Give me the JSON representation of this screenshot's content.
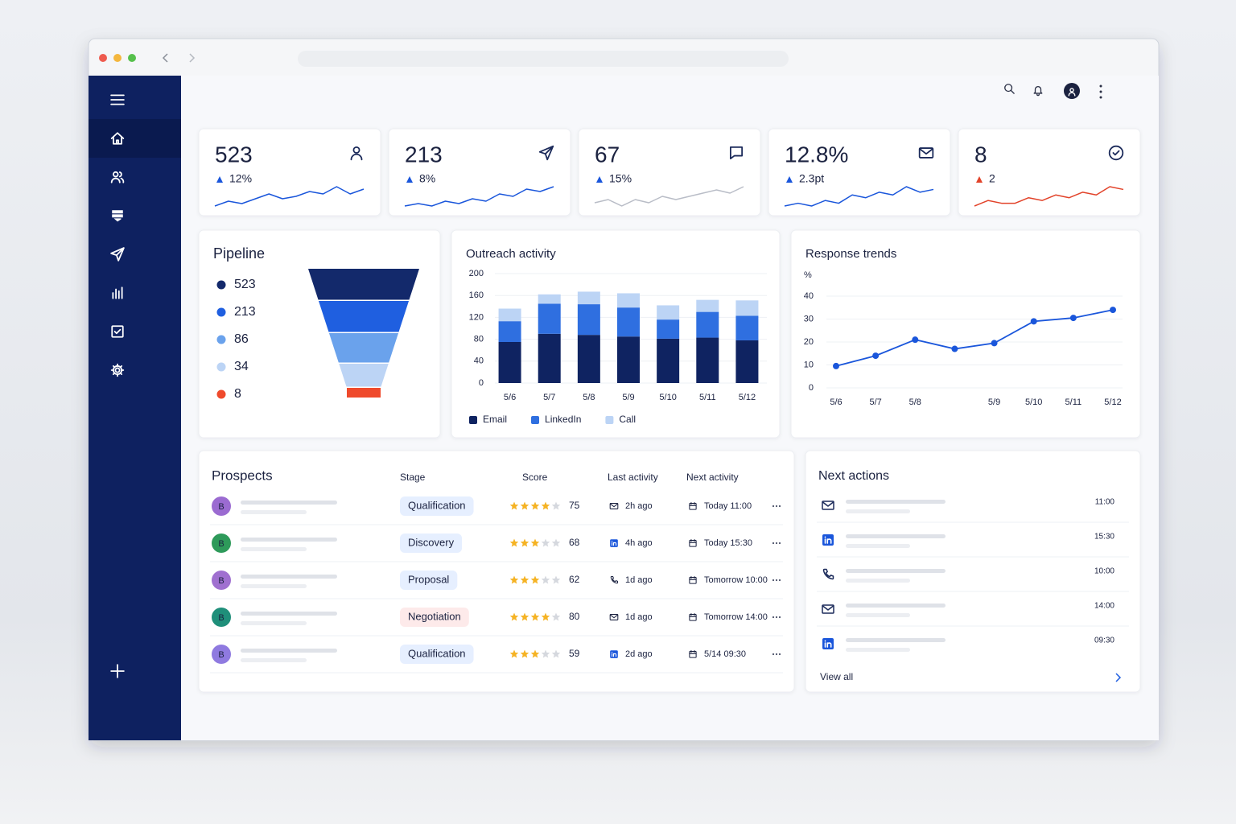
{
  "kpis": [
    {
      "value": "523",
      "delta": "12%",
      "direction": "up",
      "icon": "user",
      "color": "#1a56db",
      "spark_color": "#1a56db",
      "spark": [
        3,
        5,
        4,
        6,
        8,
        6,
        7,
        9,
        8,
        11,
        8,
        10
      ]
    },
    {
      "value": "213",
      "delta": "8%",
      "direction": "up",
      "icon": "send",
      "color": "#1a56db",
      "spark_color": "#1a56db",
      "spark": [
        3,
        4,
        3,
        5,
        4,
        6,
        5,
        8,
        7,
        10,
        9,
        11
      ]
    },
    {
      "value": "67",
      "delta": "15%",
      "direction": "up",
      "icon": "chat",
      "color": "#1a56db",
      "spark_color": "#b9bdc7",
      "spark": [
        4,
        5,
        3,
        5,
        4,
        6,
        5,
        6,
        7,
        8,
        7,
        9
      ]
    },
    {
      "value": "12.8%",
      "delta": "2.3pt",
      "direction": "up",
      "icon": "mail",
      "color": "#1a56db",
      "spark_color": "#1a56db",
      "spark": [
        3,
        4,
        3,
        5,
        4,
        7,
        6,
        8,
        7,
        10,
        8,
        9
      ]
    },
    {
      "value": "8",
      "delta": "2",
      "direction": "up",
      "icon": "check",
      "color": "#e2432a",
      "spark_color": "#e2432a",
      "spark": [
        3,
        5,
        4,
        4,
        6,
        5,
        7,
        6,
        8,
        7,
        10,
        9
      ]
    }
  ],
  "pipeline": {
    "title": "Pipeline",
    "stages": [
      {
        "value": 523,
        "color": "#13296b"
      },
      {
        "value": 213,
        "color": "#1f5fe0"
      },
      {
        "value": 86,
        "color": "#6aa2ec"
      },
      {
        "value": 34,
        "color": "#bcd4f5"
      },
      {
        "value": 8,
        "color": "#ef4a2c"
      }
    ]
  },
  "outreach": {
    "type": "bar",
    "stacked": true,
    "title": "Outreach activity",
    "categories": [
      "5/6",
      "5/7",
      "5/8",
      "5/9",
      "5/10",
      "5/11",
      "5/12"
    ],
    "series": [
      {
        "name": "Email",
        "color": "#0f2361",
        "values": [
          75,
          90,
          88,
          85,
          81,
          83,
          78
        ]
      },
      {
        "name": "LinkedIn",
        "color": "#2f6fe0",
        "values": [
          38,
          55,
          56,
          53,
          35,
          47,
          45
        ]
      },
      {
        "name": "Call",
        "color": "#bcd4f5",
        "values": [
          23,
          17,
          23,
          26,
          26,
          22,
          28
        ]
      }
    ],
    "ylim": [
      0,
      200
    ],
    "yticks": [
      0,
      40,
      80,
      120,
      160,
      200
    ],
    "grid": true,
    "legend": "bottom"
  },
  "response": {
    "type": "line",
    "title": "Response trends",
    "y_label": "%",
    "categories": [
      "5/6",
      "5/7",
      "5/8",
      null,
      "5/9",
      "5/10",
      "5/11",
      "5/12"
    ],
    "series": [
      {
        "color": "#1a56db",
        "values": [
          9.5,
          14,
          21,
          17,
          19.5,
          29,
          30.5,
          34
        ]
      }
    ],
    "ylim": [
      0,
      40
    ],
    "yticks": [
      0,
      10,
      20,
      30,
      40
    ],
    "grid": true
  },
  "prospects": {
    "title": "Prospects",
    "columns": [
      "Stage",
      "Score",
      "Last activity",
      "Next activity"
    ],
    "rows": [
      {
        "avatar": "B",
        "avatar_color": "#9b6bd1",
        "stage": "Qualification",
        "stage_style": "blue",
        "stars": 4,
        "score": 75,
        "last_icon": "mail",
        "last": "2h ago",
        "next": "Today 11:00"
      },
      {
        "avatar": "B",
        "avatar_color": "#2e9a5a",
        "stage": "Discovery",
        "stage_style": "blue",
        "stars": 3,
        "score": 68,
        "last_icon": "linkedin",
        "last": "4h ago",
        "next": "Today 15:30"
      },
      {
        "avatar": "B",
        "avatar_color": "#a070d0",
        "stage": "Proposal",
        "stage_style": "blue",
        "stars": 3,
        "score": 62,
        "last_icon": "phone",
        "last": "1d ago",
        "next": "Tomorrow 10:00"
      },
      {
        "avatar": "B",
        "avatar_color": "#1f8f7a",
        "stage": "Negotiation",
        "stage_style": "red",
        "stars": 4,
        "score": 80,
        "last_icon": "mail",
        "last": "1d ago",
        "next": "Tomorrow 14:00"
      },
      {
        "avatar": "B",
        "avatar_color": "#8f7ae0",
        "stage": "Qualification",
        "stage_style": "blue",
        "stars": 3,
        "score": 59,
        "last_icon": "linkedin",
        "last": "2d ago",
        "next": "5/14 09:30"
      }
    ]
  },
  "next_actions": {
    "title": "Next actions",
    "items": [
      {
        "icon": "mail",
        "time": "11:00"
      },
      {
        "icon": "linkedin",
        "time": "15:30"
      },
      {
        "icon": "phone",
        "time": "10:00"
      },
      {
        "icon": "mail",
        "time": "14:00"
      },
      {
        "icon": "linkedin",
        "time": "09:30"
      }
    ],
    "link": "View all"
  }
}
